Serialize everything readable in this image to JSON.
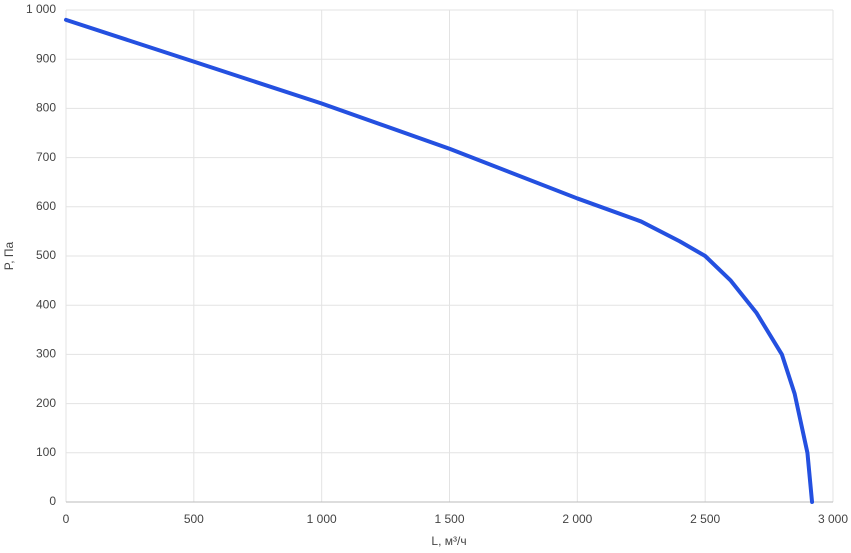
{
  "chart_data": {
    "type": "line",
    "x_label": "L, м³/ч",
    "y_label": "P, Па",
    "series": [
      {
        "name": "P",
        "color": "#2450e0",
        "x": [
          0,
          500,
          1000,
          1500,
          2000,
          2250,
          2400,
          2500,
          2600,
          2700,
          2800,
          2850,
          2900,
          2918
        ],
        "values": [
          980,
          895,
          810,
          718,
          617,
          570,
          530,
          500,
          450,
          385,
          300,
          220,
          100,
          0
        ]
      }
    ],
    "xlim": [
      0,
      3000
    ],
    "xticks": [
      0,
      500,
      {
        "value": 1000,
        "label": "1 000"
      },
      {
        "value": 1500,
        "label": "1 500"
      },
      {
        "value": 2000,
        "label": "2 000"
      },
      {
        "value": 2500,
        "label": "2 500"
      },
      {
        "value": 3000,
        "label": "3 000"
      }
    ],
    "ylim": [
      0,
      1000
    ],
    "yticks": [
      0,
      100,
      200,
      300,
      400,
      500,
      600,
      700,
      800,
      900,
      {
        "value": 1000,
        "label": "1 000"
      }
    ],
    "grid": true
  }
}
